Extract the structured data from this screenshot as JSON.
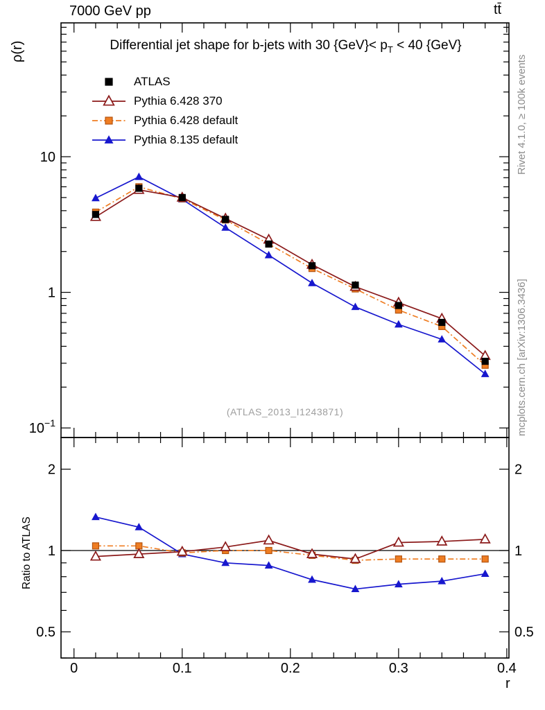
{
  "header": {
    "left": "7000 GeV pp",
    "right": "tt̄"
  },
  "title": {
    "pre": "Differential jet shape for b-jets with 30 {GeV}< p",
    "sub": "T",
    "post": " < 40 {GeV}"
  },
  "watermark": "(ATLAS_2013_I1243871)",
  "side_notes": {
    "top_right": "Rivet 4.1.0, ≥ 100k events",
    "bottom_right": "mcplots.cern.ch [arXiv:1306.3436]"
  },
  "axes": {
    "x": {
      "label": "r",
      "ticks": [
        {
          "v": 0,
          "label": "0"
        },
        {
          "v": 0.1,
          "label": "0.1"
        },
        {
          "v": 0.2,
          "label": "0.2"
        },
        {
          "v": 0.3,
          "label": "0.3"
        },
        {
          "v": 0.4,
          "label": "0.4"
        }
      ],
      "minor_step": 0.02
    },
    "main_y": {
      "label": "ρ(r)",
      "ticks": [
        {
          "v": 10,
          "label": "10"
        },
        {
          "v": 1,
          "label": "1"
        },
        {
          "v": 0.1,
          "label": "10",
          "sup": "−1"
        }
      ]
    },
    "ratio_y": {
      "label": "Ratio to ATLAS",
      "ticks": [
        {
          "v": 0.5,
          "label": "0.5"
        },
        {
          "v": 1,
          "label": "1"
        },
        {
          "v": 2,
          "label": "2"
        }
      ],
      "minor": [
        0.4,
        0.6,
        0.7,
        0.8,
        0.9
      ]
    }
  },
  "chart_data": [
    {
      "type": "line",
      "title": "Differential jet shape for b-jets with 30 {GeV}< pT < 40 {GeV}",
      "xlabel": "r",
      "ylabel": "ρ(r)",
      "xscale": "linear",
      "yscale": "log",
      "xlim": [
        -0.012,
        0.402
      ],
      "ylim": [
        0.085,
        97
      ],
      "legend_position": "upper-left",
      "grid": false,
      "x": [
        0.02,
        0.06,
        0.1,
        0.14,
        0.18,
        0.22,
        0.26,
        0.3,
        0.34,
        0.38
      ],
      "series": [
        {
          "name": "ATLAS",
          "color": "#000000",
          "marker": "square",
          "line": "none",
          "values": [
            3.75,
            5.85,
            5.0,
            3.45,
            2.27,
            1.57,
            1.13,
            0.8,
            0.6,
            0.31
          ]
        },
        {
          "name": "Pythia 6.428 370",
          "color": "#8B1A1A",
          "marker": "triangle-open",
          "line": "solid",
          "values": [
            3.6,
            5.7,
            5.0,
            3.5,
            2.45,
            1.6,
            1.1,
            0.84,
            0.64,
            0.34
          ]
        },
        {
          "name": "Pythia 6.428 default",
          "color": "#EF7D22",
          "edge": "#B35310",
          "marker": "square",
          "line": "dashdot",
          "values": [
            3.9,
            6.0,
            4.9,
            3.42,
            2.27,
            1.5,
            1.06,
            0.74,
            0.56,
            0.29
          ]
        },
        {
          "name": "Pythia 8.135 default",
          "color": "#1717CE",
          "marker": "triangle",
          "line": "solid",
          "values": [
            4.95,
            7.1,
            4.85,
            3.0,
            1.88,
            1.17,
            0.78,
            0.58,
            0.45,
            0.25
          ]
        }
      ]
    },
    {
      "type": "line",
      "title": "",
      "xlabel": "r",
      "ylabel": "Ratio to ATLAS",
      "xscale": "linear",
      "yscale": "log",
      "xlim": [
        -0.012,
        0.402
      ],
      "ylim": [
        0.4,
        2.62
      ],
      "ref_line": 1,
      "grid": false,
      "x": [
        0.02,
        0.06,
        0.1,
        0.14,
        0.18,
        0.22,
        0.26,
        0.3,
        0.34,
        0.38
      ],
      "series": [
        {
          "name": "Pythia 6.428 370",
          "color": "#8B1A1A",
          "marker": "triangle-open",
          "line": "solid",
          "values": [
            0.95,
            0.97,
            0.99,
            1.03,
            1.09,
            0.97,
            0.93,
            1.07,
            1.08,
            1.1
          ]
        },
        {
          "name": "Pythia 6.428 default",
          "color": "#EF7D22",
          "edge": "#B35310",
          "marker": "square",
          "line": "dashdot",
          "values": [
            1.04,
            1.04,
            0.98,
            1.0,
            1.0,
            0.96,
            0.92,
            0.93,
            0.93,
            0.93
          ]
        },
        {
          "name": "Pythia 8.135 default",
          "color": "#1717CE",
          "marker": "triangle",
          "line": "solid",
          "values": [
            1.33,
            1.22,
            0.97,
            0.9,
            0.88,
            0.78,
            0.72,
            0.75,
            0.77,
            0.82
          ]
        }
      ]
    }
  ]
}
